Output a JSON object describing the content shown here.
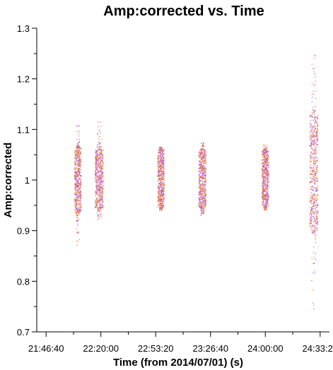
{
  "chart_data": {
    "type": "scatter",
    "title": "Amp:corrected vs. Time",
    "xlabel": "Time (from 2014/07/01) (s)",
    "ylabel": "Amp:corrected",
    "x_ticks": [
      "21:46:40",
      "22:20:00",
      "22:53:20",
      "23:26:40",
      "24:00:00",
      "24:33:20"
    ],
    "y_ticks": [
      "0.7",
      "0.8",
      "0.9",
      "1",
      "1.1",
      "1.2",
      "1.3"
    ],
    "xlim": [
      "21:41:00",
      "24:39:00"
    ],
    "ylim": [
      0.7,
      1.3
    ],
    "grid": false,
    "colors": [
      "#e8742a",
      "#b55ce8"
    ],
    "series": [
      {
        "x_range": [
          "22:04:00",
          "22:08:00"
        ],
        "y_core": [
          0.935,
          1.065
        ],
        "y_extremes": [
          0.862,
          1.115
        ]
      },
      {
        "x_range": [
          "22:16:30",
          "22:21:30"
        ],
        "y_core": [
          0.945,
          1.06
        ],
        "y_extremes": [
          0.92,
          1.12
        ]
      },
      {
        "x_range": [
          "22:54:30",
          "22:58:30"
        ],
        "y_core": [
          0.945,
          1.06
        ],
        "y_extremes": [
          0.94,
          1.065
        ]
      },
      {
        "x_range": [
          "23:19:30",
          "23:24:00"
        ],
        "y_core": [
          0.945,
          1.06
        ],
        "y_extremes": [
          0.93,
          1.075
        ]
      },
      {
        "x_range": [
          "23:58:00",
          "24:02:00"
        ],
        "y_core": [
          0.948,
          1.058
        ],
        "y_extremes": [
          0.94,
          1.07
        ]
      },
      {
        "x_range": [
          "24:27:00",
          "24:32:00"
        ],
        "y_core": [
          0.9,
          1.13
        ],
        "y_extremes": [
          0.74,
          1.255
        ]
      }
    ]
  }
}
